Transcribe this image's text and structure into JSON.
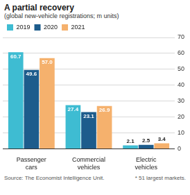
{
  "chart_data": {
    "type": "bar",
    "title": "A partial recovery",
    "subtitle": "(global new-vehicle registrations; m units)",
    "categories": [
      "Passenger cars",
      "Commercial vehicles",
      "Electric vehicles"
    ],
    "series": [
      {
        "name": "2019",
        "color": "#3ebcd2",
        "values": [
          60.7,
          27.4,
          2.1
        ]
      },
      {
        "name": "2020",
        "color": "#1d5c8c",
        "values": [
          49.6,
          23.1,
          2.5
        ]
      },
      {
        "name": "2021",
        "color": "#f5b16d",
        "values": [
          57.0,
          26.9,
          3.4
        ],
        "value_labels": [
          "57.0",
          "26.9",
          "3.4"
        ]
      }
    ],
    "ylim": [
      0,
      70
    ],
    "yticks": [
      0,
      10,
      20,
      30,
      40,
      50,
      60,
      70
    ],
    "grid": true,
    "legend": "top-left",
    "data_labels": true,
    "annotations": [
      "Source: The Economist Intelligence Unit.",
      "* 51 largest markets."
    ]
  }
}
